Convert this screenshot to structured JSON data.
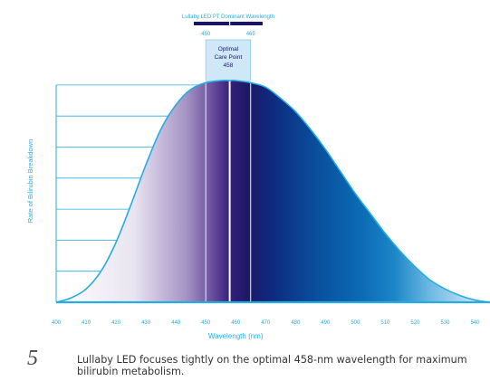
{
  "chart_data": {
    "type": "area",
    "title": "",
    "xlabel": "Wavelength (nm)",
    "ylabel": "Rate of Bilirubin Breakdown",
    "xlim": [
      400,
      545
    ],
    "ylim": [
      0,
      1
    ],
    "x_ticks": [
      400,
      410,
      420,
      430,
      440,
      450,
      460,
      470,
      480,
      490,
      500,
      510,
      520,
      530,
      540
    ],
    "y_ticks": [
      0.14,
      0.28,
      0.42,
      0.56,
      0.7,
      0.84,
      0.98
    ],
    "grid": "horizontal lines from y-axis to curve",
    "series": [
      {
        "name": "",
        "x": [
          400,
          405,
          410,
          415,
          420,
          425,
          430,
          435,
          440,
          445,
          450,
          455,
          458,
          460,
          465,
          470,
          475,
          480,
          485,
          490,
          495,
          500,
          505,
          510,
          515,
          520,
          525,
          530,
          535,
          540,
          545
        ],
        "y": [
          0.0,
          0.02,
          0.06,
          0.14,
          0.27,
          0.44,
          0.62,
          0.78,
          0.89,
          0.96,
          0.99,
          1.0,
          1.0,
          1.0,
          0.99,
          0.97,
          0.92,
          0.86,
          0.78,
          0.69,
          0.59,
          0.49,
          0.4,
          0.31,
          0.23,
          0.16,
          0.1,
          0.06,
          0.03,
          0.01,
          0.0
        ]
      }
    ],
    "dominant_band": {
      "label": "Lullaby LED PT Dominant Wavelength",
      "start": 450,
      "end": 465,
      "start_label": "450",
      "end_label": "465"
    },
    "optimal_point": {
      "label_line1": "Optimal",
      "label_line2": "Care Point",
      "label_line3": "458",
      "x": 458
    },
    "colors": {
      "axis": "#29abe2",
      "text": "#29abe2",
      "dark_band": "#1b1464",
      "curve_outline": "#29abe2",
      "band_box": "#cfe8f7"
    }
  },
  "caption": "Lullaby LED focuses tightly on the optimal 458-nm wavelength for maximum bilirubin metabolism.",
  "figure_mark": "5"
}
